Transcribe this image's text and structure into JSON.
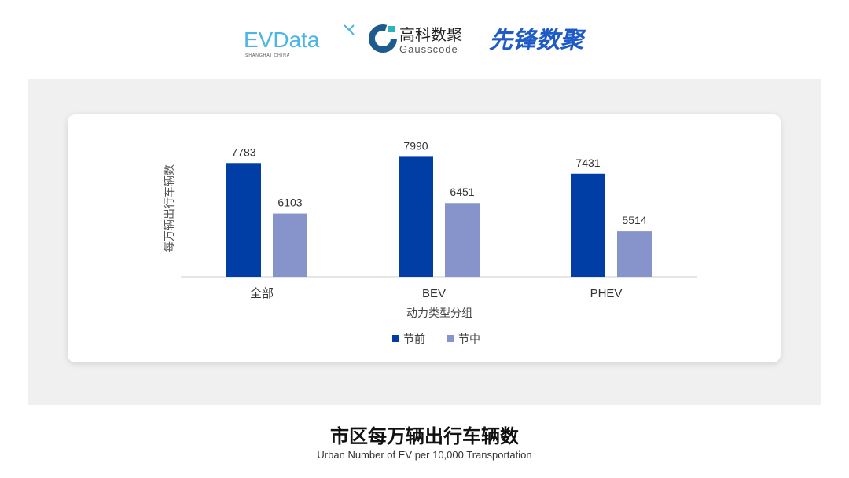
{
  "logos": {
    "evdata": "EVData",
    "evdata_sub": "SHANGHAI CHINA",
    "gauss_cn": "高科数聚",
    "gauss_en": "Gausscode",
    "xianfeng": "先锋数聚"
  },
  "chart_data": {
    "type": "bar",
    "categories": [
      "全部",
      "BEV",
      "PHEV"
    ],
    "series": [
      {
        "name": "节前",
        "values": [
          7783,
          7990,
          7431
        ],
        "color": "#003DA5"
      },
      {
        "name": "节中",
        "values": [
          6103,
          6451,
          5514
        ],
        "color": "#8794CC"
      }
    ],
    "xlabel": "动力类型分组",
    "ylabel": "每万辆出行车辆数",
    "ylim": [
      4000,
      8000
    ],
    "grid": false,
    "legend": "bottom"
  },
  "footer": {
    "title": "市区每万辆出行车辆数",
    "subtitle": "Urban Number of EV per 10,000 Transportation"
  }
}
